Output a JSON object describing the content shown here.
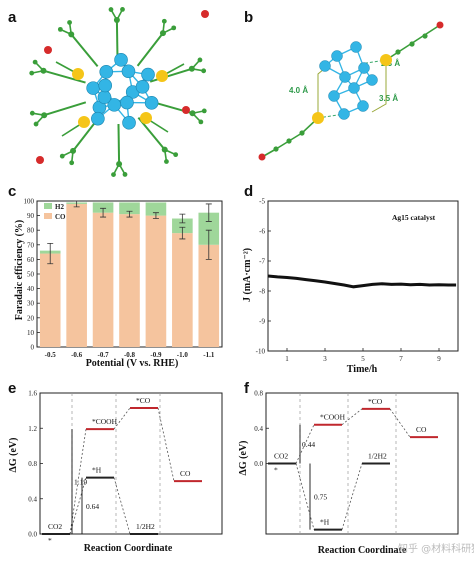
{
  "panels": {
    "a": {
      "label": "a"
    },
    "b": {
      "label": "b",
      "distances": [
        "4.0 Å",
        "2.3 Å",
        "3.5 Å"
      ]
    },
    "e": {
      "label": "e"
    },
    "f": {
      "label": "f"
    }
  },
  "watermark": "知乎 @材料科研狗",
  "colors": {
    "co": "#f5c49e",
    "h2": "#9fd79a",
    "ag": "#33b5e5",
    "s": "#f5c518",
    "c": "#3a9e3a",
    "o": "#d62b2b",
    "level": "#c0272d"
  },
  "chart_data": [
    {
      "panel": "c",
      "label": "c",
      "type": "bar",
      "stacked": true,
      "xlabel": "Potential (V vs. RHE)",
      "ylabel": "Faradaic efficiency (%)",
      "ylim": [
        0,
        100
      ],
      "yticks": [
        "0",
        "10",
        "20",
        "30",
        "40",
        "50",
        "60",
        "70",
        "80",
        "90",
        "100"
      ],
      "categories": [
        "-0.5",
        "-0.6",
        "-0.7",
        "-0.8",
        "-0.9",
        "-1.0",
        "-1.1"
      ],
      "legend": [
        "H2",
        "CO"
      ],
      "legend_position": "top-left",
      "series": [
        {
          "name": "CO",
          "values": [
            64,
            98,
            92,
            91,
            90,
            78,
            70
          ],
          "errors": [
            7,
            2,
            3,
            2,
            2,
            4,
            10
          ]
        },
        {
          "name": "H2",
          "values": [
            2,
            1,
            7,
            8,
            9,
            10,
            22
          ],
          "errors": [
            0,
            0,
            0,
            0,
            0,
            3,
            6
          ]
        }
      ]
    },
    {
      "panel": "d",
      "label": "d",
      "type": "line",
      "xlabel": "Time/h",
      "ylabel": "J (mA·cm⁻²)",
      "xlim": [
        0,
        10
      ],
      "ylim": [
        -10,
        -5
      ],
      "xticks": [
        "1",
        "3",
        "5",
        "7",
        "9"
      ],
      "yticks": [
        "-5",
        "-6",
        "-7",
        "-8",
        "-9",
        "-10"
      ],
      "annotation": "Ag15 catalyst",
      "series": [
        {
          "x": [
            0,
            0.5,
            1,
            1.5,
            2,
            2.5,
            3,
            3.5,
            4,
            4.5,
            5,
            5.5,
            6,
            6.5,
            7,
            7.5,
            8,
            8.5,
            9,
            9.5,
            9.9
          ],
          "y": [
            -7.5,
            -7.53,
            -7.55,
            -7.58,
            -7.62,
            -7.66,
            -7.7,
            -7.75,
            -7.8,
            -7.86,
            -7.82,
            -7.78,
            -7.76,
            -7.78,
            -7.77,
            -7.79,
            -7.78,
            -7.8,
            -7.79,
            -7.8,
            -7.8
          ]
        }
      ]
    },
    {
      "panel": "e",
      "label": "e",
      "type": "line",
      "subtype": "energy_diagram",
      "xlabel": "Reaction Coordinate",
      "ylabel": "ΔG (eV)",
      "ylim": [
        0,
        1.6
      ],
      "yticks": [
        "0.0",
        "0.4",
        "0.8",
        "1.2",
        "1.6"
      ],
      "steps": [
        {
          "label": "CO2",
          "sublabel": "*",
          "value": 0.0,
          "stage": 0
        },
        {
          "label": "*COOH",
          "value": 1.19,
          "stage": 1
        },
        {
          "label": "*CO",
          "value": 1.43,
          "stage": 2
        },
        {
          "label": "CO",
          "value": 0.6,
          "stage": 3
        },
        {
          "label": "*H",
          "value": 0.64,
          "stage": 1
        },
        {
          "label": "1/2H2",
          "value": 0.0,
          "stage": 2
        }
      ],
      "arrows": [
        {
          "value_label": "1.19"
        },
        {
          "value_label": "0.64"
        }
      ]
    },
    {
      "panel": "f",
      "label": "f",
      "type": "line",
      "subtype": "energy_diagram",
      "xlabel": "Reaction Coordinate",
      "ylabel": "ΔG (eV)",
      "ylim": [
        -0.8,
        0.8
      ],
      "yticks": [
        "0.0",
        "0.4",
        "0.8"
      ],
      "steps": [
        {
          "label": "CO2",
          "sublabel": "*",
          "value": 0.0,
          "stage": 0
        },
        {
          "label": "*COOH",
          "value": 0.44,
          "stage": 1
        },
        {
          "label": "*CO",
          "value": 0.62,
          "stage": 2
        },
        {
          "label": "CO",
          "value": 0.3,
          "stage": 3
        },
        {
          "label": "*H",
          "value": -0.75,
          "stage": 1
        },
        {
          "label": "1/2H2",
          "value": 0.0,
          "stage": 2
        }
      ],
      "arrows": [
        {
          "value_label": "0.44"
        },
        {
          "value_label": "0.75"
        }
      ]
    }
  ]
}
